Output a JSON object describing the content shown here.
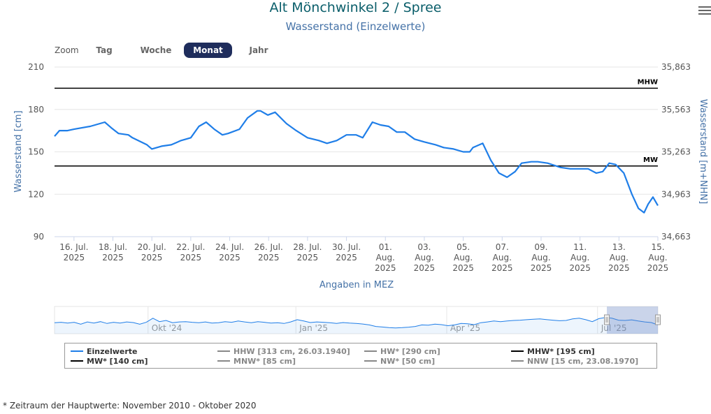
{
  "header": {
    "title": "Alt Mönchwinkel 2 / Spree",
    "subtitle": "Wasserstand (Einzelwerte)"
  },
  "range_selector": {
    "zoom_label": "Zoom",
    "buttons": [
      {
        "label": "Tag",
        "active": false
      },
      {
        "label": "Woche",
        "active": false
      },
      {
        "label": "Monat",
        "active": true
      },
      {
        "label": "Jahr",
        "active": false
      }
    ]
  },
  "chart_data": {
    "type": "line",
    "title": "Wasserstand (Einzelwerte)",
    "xlabel": "Angaben in MEZ",
    "ylabel": "Wasserstand [cm]",
    "ylabel_right": "Wasserstand [m+NHN]",
    "ylim": [
      90,
      210
    ],
    "yticks": [
      "210",
      "180",
      "150",
      "120",
      "90"
    ],
    "yticks_right": [
      "35,863",
      "35,563",
      "35,263",
      "34,963",
      "34,663"
    ],
    "xlim": [
      "2025-07-15",
      "2025-08-15"
    ],
    "xticks": [
      {
        "day": 1,
        "line1": "16. Jul.",
        "line2": "2025"
      },
      {
        "day": 3,
        "line1": "18. Jul.",
        "line2": "2025"
      },
      {
        "day": 5,
        "line1": "20. Jul.",
        "line2": "2025"
      },
      {
        "day": 7,
        "line1": "22. Jul.",
        "line2": "2025"
      },
      {
        "day": 9,
        "line1": "24. Jul.",
        "line2": "2025"
      },
      {
        "day": 11,
        "line1": "26. Jul.",
        "line2": "2025"
      },
      {
        "day": 13,
        "line1": "28. Jul.",
        "line2": "2025"
      },
      {
        "day": 15,
        "line1": "30. Jul.",
        "line2": "2025"
      },
      {
        "day": 17,
        "line1": "01.",
        "line2": "Aug.",
        "line3": "2025"
      },
      {
        "day": 19,
        "line1": "03.",
        "line2": "Aug.",
        "line3": "2025"
      },
      {
        "day": 21,
        "line1": "05.",
        "line2": "Aug.",
        "line3": "2025"
      },
      {
        "day": 23,
        "line1": "07.",
        "line2": "Aug.",
        "line3": "2025"
      },
      {
        "day": 25,
        "line1": "09.",
        "line2": "Aug.",
        "line3": "2025"
      },
      {
        "day": 27,
        "line1": "11.",
        "line2": "Aug.",
        "line3": "2025"
      },
      {
        "day": 29,
        "line1": "13.",
        "line2": "Aug.",
        "line3": "2025"
      },
      {
        "day": 31,
        "line1": "15.",
        "line2": "Aug.",
        "line3": "2025"
      }
    ],
    "reference_lines": [
      {
        "name": "MHW",
        "value": 195,
        "color": "#000000"
      },
      {
        "name": "MW",
        "value": 140,
        "color": "#000000"
      }
    ],
    "series": [
      {
        "name": "Einzelwerte",
        "color": "#1f7ee8",
        "x": [
          "2025-07-15",
          "2025-07-15T06:00",
          "2025-07-15T16:00",
          "2025-07-16",
          "2025-07-16T20:00",
          "2025-07-17T14:00",
          "2025-07-17T22:00",
          "2025-07-18T07:00",
          "2025-07-18T19:00",
          "2025-07-19",
          "2025-07-19T18:00",
          "2025-07-20",
          "2025-07-20T12:00",
          "2025-07-21",
          "2025-07-21T12:00",
          "2025-07-22",
          "2025-07-22T10:00",
          "2025-07-22T19:00",
          "2025-07-23T05:00",
          "2025-07-23T15:00",
          "2025-07-23T22:00",
          "2025-07-24T12:00",
          "2025-07-24T22:00",
          "2025-07-25T10:00",
          "2025-07-25T14:00",
          "2025-07-25T23:00",
          "2025-07-26T08:00",
          "2025-07-26T22:00",
          "2025-07-27T10:00",
          "2025-07-28",
          "2025-07-28T14:00",
          "2025-07-29",
          "2025-07-29T12:00",
          "2025-07-30",
          "2025-07-30T12:00",
          "2025-07-30T20:00",
          "2025-07-31T08:00",
          "2025-07-31T18:00",
          "2025-08-01T04:00",
          "2025-08-01T14:00",
          "2025-08-02",
          "2025-08-02T12:00",
          "2025-08-03",
          "2025-08-03T14:00",
          "2025-08-04",
          "2025-08-04T12:00",
          "2025-08-05",
          "2025-08-05T08:00",
          "2025-08-05T12:00",
          "2025-08-06",
          "2025-08-06T10:00",
          "2025-08-06T20:00",
          "2025-08-07T06:00",
          "2025-08-07T16:00",
          "2025-08-08",
          "2025-08-08T12:00",
          "2025-08-08T20:00",
          "2025-08-09T08:00",
          "2025-08-10",
          "2025-08-10T12:00",
          "2025-08-11T02:00",
          "2025-08-11T10:00",
          "2025-08-11T20:00",
          "2025-08-12T04:00",
          "2025-08-12T12:00",
          "2025-08-12T20:00",
          "2025-08-13T06:00",
          "2025-08-13T16:00",
          "2025-08-14",
          "2025-08-14T07:00",
          "2025-08-14T12:00",
          "2025-08-14T18:00",
          "2025-08-15"
        ],
        "values": [
          161,
          165,
          165,
          166,
          168,
          171,
          167,
          163,
          162,
          160,
          155,
          152,
          154,
          155,
          158,
          160,
          168,
          171,
          166,
          162,
          163,
          166,
          174,
          179,
          179,
          176,
          178,
          170,
          165,
          160,
          158,
          156,
          158,
          162,
          162,
          160,
          171,
          169,
          168,
          164,
          164,
          159,
          157,
          155,
          153,
          152,
          150,
          150,
          153,
          156,
          144,
          135,
          132,
          136,
          142,
          143,
          143,
          142,
          139,
          138,
          138,
          138,
          135,
          136,
          142,
          141,
          135,
          120,
          110,
          107,
          113,
          118,
          112
        ]
      }
    ]
  },
  "navigator": {
    "labels": [
      {
        "text": "Okt '24",
        "pos": 0.155
      },
      {
        "text": "Jan '25",
        "pos": 0.4
      },
      {
        "text": "Apr '25",
        "pos": 0.65
      },
      {
        "text": "Jul '25",
        "pos": 0.9
      }
    ],
    "values": [
      0.55,
      0.58,
      0.52,
      0.58,
      0.45,
      0.6,
      0.52,
      0.62,
      0.5,
      0.58,
      0.52,
      0.6,
      0.56,
      0.45,
      0.58,
      0.85,
      0.62,
      0.7,
      0.55,
      0.6,
      0.62,
      0.58,
      0.55,
      0.6,
      0.52,
      0.55,
      0.62,
      0.58,
      0.66,
      0.6,
      0.55,
      0.62,
      0.58,
      0.52,
      0.55,
      0.5,
      0.6,
      0.75,
      0.66,
      0.56,
      0.6,
      0.58,
      0.55,
      0.5,
      0.56,
      0.52,
      0.5,
      0.46,
      0.4,
      0.3,
      0.26,
      0.22,
      0.2,
      0.22,
      0.25,
      0.3,
      0.4,
      0.38,
      0.45,
      0.42,
      0.35,
      0.4,
      0.5,
      0.48,
      0.42,
      0.55,
      0.6,
      0.66,
      0.62,
      0.66,
      0.7,
      0.72,
      0.75,
      0.78,
      0.8,
      0.76,
      0.72,
      0.68,
      0.7,
      0.8,
      0.85,
      0.75,
      0.62,
      0.82,
      0.9,
      0.85,
      0.72,
      0.7,
      0.74,
      0.66,
      0.6,
      0.56,
      0.4
    ]
  },
  "legend": [
    {
      "label": "Einzelwerte",
      "color": "#1f7ee8",
      "active": true
    },
    {
      "label": "HHW [313 cm, 26.03.1940]",
      "color": "#888888",
      "active": false
    },
    {
      "label": "HW* [290 cm]",
      "color": "#888888",
      "active": false
    },
    {
      "label": "MHW* [195 cm]",
      "color": "#000000",
      "active": true
    },
    {
      "label": "MW* [140 cm]",
      "color": "#000000",
      "active": true
    },
    {
      "label": "MNW* [85 cm]",
      "color": "#888888",
      "active": false
    },
    {
      "label": "NW* [50 cm]",
      "color": "#888888",
      "active": false
    },
    {
      "label": "NNW [15 cm, 23.08.1970]",
      "color": "#888888",
      "active": false
    }
  ],
  "footnote": "* Zeitraum der Hauptwerte: November 2010 - Oktober 2020"
}
